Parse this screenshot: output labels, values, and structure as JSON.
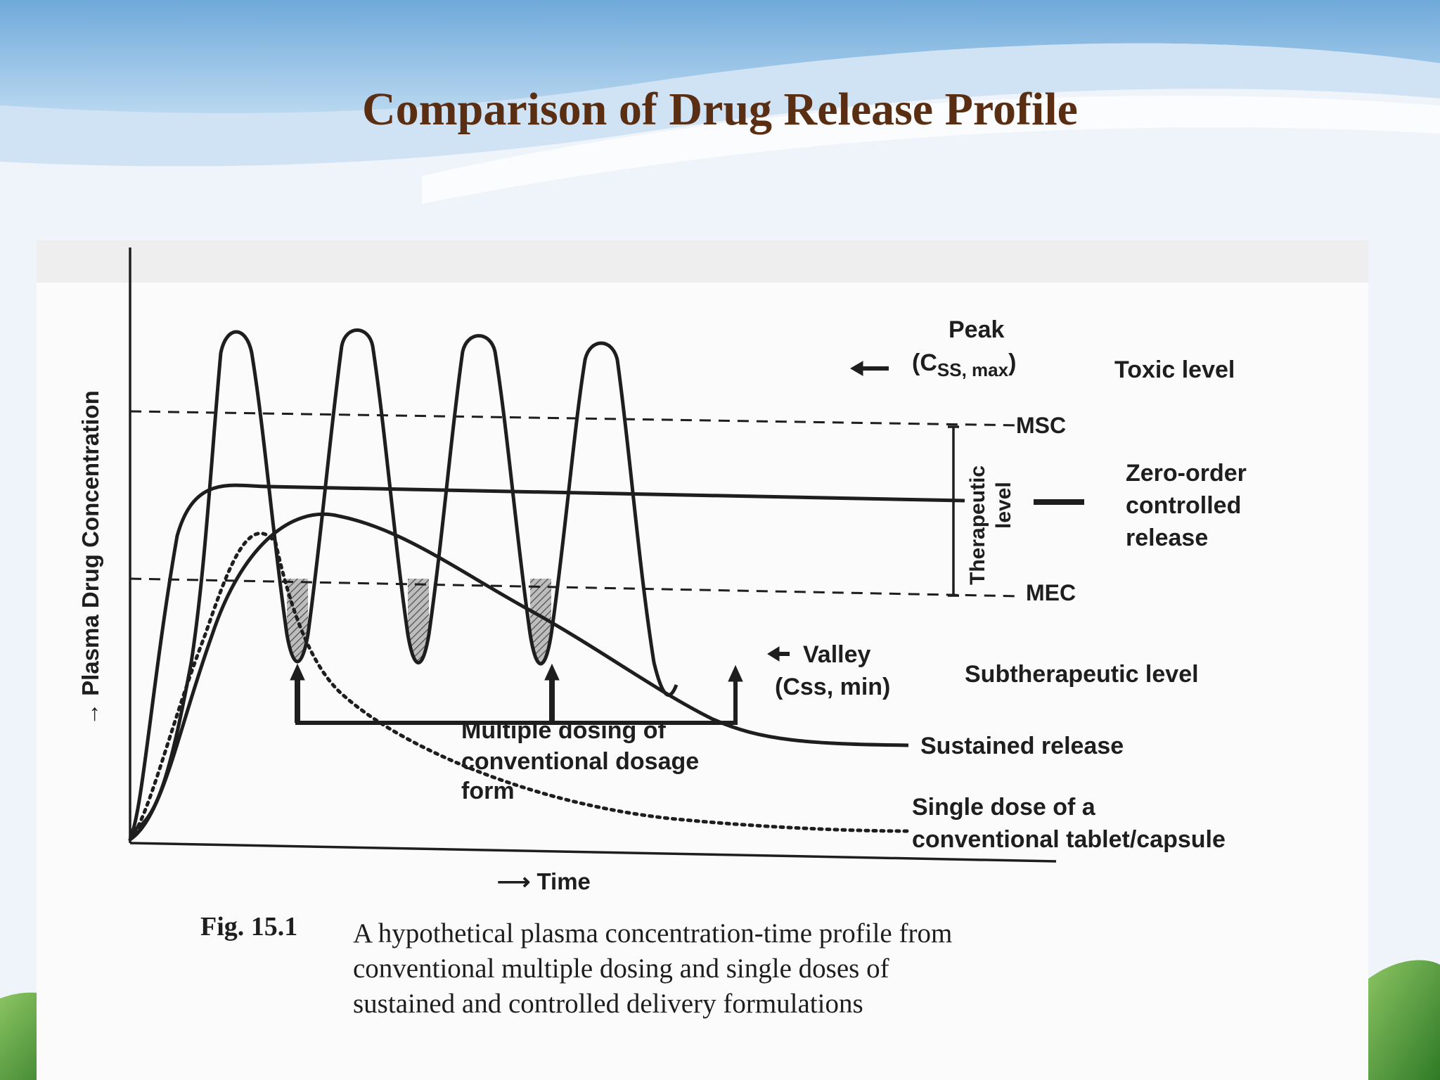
{
  "slide": {
    "title": "Comparison of Drug Release Profile",
    "colors": {
      "title": "#5a2e12",
      "sky": "#8fc0e6",
      "grass": "#4f9a34"
    }
  },
  "figure": {
    "y_axis_label": "→ Plasma Drug Concentration",
    "x_axis_label": "⟶ Time",
    "peak_label": "Peak",
    "peak_sub_prefix": "(C",
    "peak_sub_subscript": "SS, max",
    "peak_sub_suffix": ")",
    "toxic_level": "Toxic level",
    "msc": "MSC",
    "mec": "MEC",
    "therapeutic_level_line1": "Therapeutic",
    "therapeutic_level_line2": "level",
    "zero_order": [
      "Zero-order",
      "controlled",
      "release"
    ],
    "valley": "Valley",
    "valley_sub": "(Css, min)",
    "subtherapeutic_level": "Subtherapeutic level",
    "multiple_dosing": [
      "Multiple dosing of",
      "conventional dosage",
      "form"
    ],
    "sustained_release": "Sustained release",
    "single_dose": [
      "Single dose of a",
      "conventional tablet/capsule"
    ],
    "caption_number": "Fig. 15.1",
    "caption_lines": [
      "A hypothetical plasma concentration-time profile from",
      "conventional multiple dosing and single doses of",
      "sustained and controlled delivery formulations"
    ]
  }
}
